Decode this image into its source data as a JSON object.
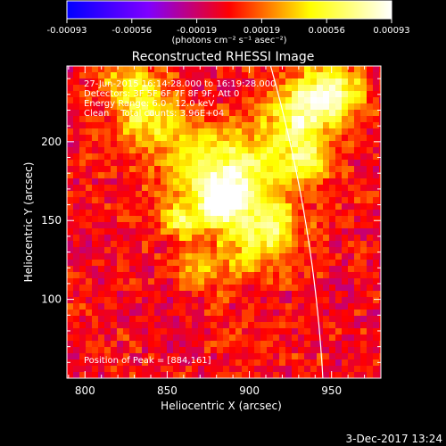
{
  "chart_data": {
    "type": "heatmap",
    "title": "Reconstructed RHESSI Image",
    "xlabel": "Heliocentric X (arcsec)",
    "ylabel": "Heliocentric Y (arcsec)",
    "xlim": [
      789,
      980
    ],
    "ylim": [
      50,
      248
    ],
    "xticks": [
      800,
      850,
      900,
      950
    ],
    "yticks": [
      100,
      150,
      200
    ],
    "colorbar": {
      "min": -0.00093,
      "max": 0.00093,
      "ticks": [
        "-0.00093",
        "-0.00056",
        "-0.00019",
        "0.00019",
        "0.00056",
        "0.00093"
      ],
      "units": "(photons cm⁻² s⁻¹ asec⁻²)",
      "colors": [
        "#0000ff",
        "#7f00ff",
        "#ff0000",
        "#ffff00",
        "#ffffff"
      ]
    },
    "annotations": {
      "time_range": "27-Jun-2015 16:14:28.000 to 16:19:28.000",
      "detectors": "Detectors: 3F 5F 6F 7F 8F 9F, Att 0",
      "energy": "Energy Range: 6.0 - 12.0 keV",
      "clean": "Clean    Total counts: 3.96E+04",
      "peak": "Position of Peak = [884,161]"
    },
    "peak": [
      884,
      161
    ],
    "limb_color": "#ffffff",
    "sources": [
      {
        "x": 884,
        "y": 161,
        "sigma": 9,
        "amp": 1.0
      },
      {
        "x": 876,
        "y": 178,
        "sigma": 20,
        "amp": 0.55
      },
      {
        "x": 930,
        "y": 216,
        "sigma": 14,
        "amp": 0.7
      },
      {
        "x": 950,
        "y": 232,
        "sigma": 13,
        "amp": 0.8
      },
      {
        "x": 840,
        "y": 214,
        "sigma": 14,
        "amp": 0.55
      },
      {
        "x": 828,
        "y": 238,
        "sigma": 11,
        "amp": 0.5
      },
      {
        "x": 858,
        "y": 150,
        "sigma": 7,
        "amp": 0.55
      },
      {
        "x": 905,
        "y": 180,
        "sigma": 18,
        "amp": 0.45
      },
      {
        "x": 900,
        "y": 132,
        "sigma": 14,
        "amp": 0.4
      },
      {
        "x": 915,
        "y": 145,
        "sigma": 12,
        "amp": 0.45
      },
      {
        "x": 870,
        "y": 120,
        "sigma": 10,
        "amp": 0.3
      },
      {
        "x": 935,
        "y": 188,
        "sigma": 10,
        "amp": 0.45
      }
    ]
  },
  "footer": {
    "date": "3-Dec-2017 13:24"
  }
}
